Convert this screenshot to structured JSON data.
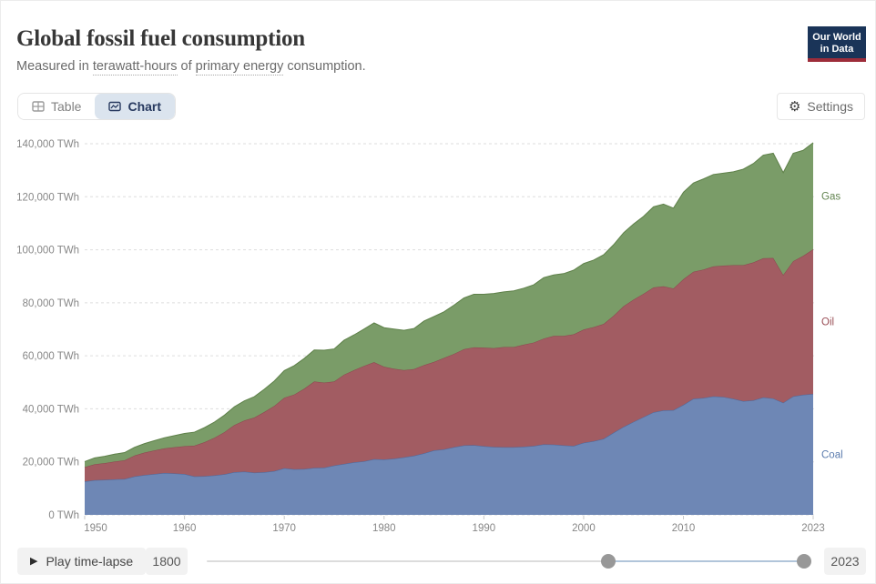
{
  "header": {
    "title": "Global fossil fuel consumption",
    "subtitle_parts": [
      {
        "text": "Measured in "
      },
      {
        "text": "terawatt-hours",
        "term": true
      },
      {
        "text": " of "
      },
      {
        "text": "primary energy",
        "term": true
      },
      {
        "text": " consumption."
      }
    ],
    "logo": {
      "line1": "Our World",
      "line2": "in Data",
      "bg_color": "#1a3458",
      "accent_color": "#9d2c3a"
    }
  },
  "tabs": {
    "table_label": "Table",
    "chart_label": "Chart",
    "active": "Chart"
  },
  "settings": {
    "label": "Settings"
  },
  "icons": {
    "gear_glyph": "⚙",
    "play_glyph": "▶"
  },
  "chart_data": {
    "type": "area",
    "stacked": true,
    "title": "Global fossil fuel consumption",
    "xlabel": "",
    "ylabel": "",
    "unit": "TWh",
    "tick_suffix": " TWh",
    "grid": true,
    "legend_position": "right-edge-labels",
    "ylim": [
      0,
      140000
    ],
    "yticks": [
      0,
      20000,
      40000,
      60000,
      80000,
      100000,
      120000,
      140000
    ],
    "xticks": [
      1950,
      1960,
      1970,
      1980,
      1990,
      2000,
      2010,
      2023
    ],
    "x": [
      1950,
      1951,
      1952,
      1953,
      1954,
      1955,
      1956,
      1957,
      1958,
      1959,
      1960,
      1961,
      1962,
      1963,
      1964,
      1965,
      1966,
      1967,
      1968,
      1969,
      1970,
      1971,
      1972,
      1973,
      1974,
      1975,
      1976,
      1977,
      1978,
      1979,
      1980,
      1981,
      1982,
      1983,
      1984,
      1985,
      1986,
      1987,
      1988,
      1989,
      1990,
      1991,
      1992,
      1993,
      1994,
      1995,
      1996,
      1997,
      1998,
      1999,
      2000,
      2001,
      2002,
      2003,
      2004,
      2005,
      2006,
      2007,
      2008,
      2009,
      2010,
      2011,
      2012,
      2013,
      2014,
      2015,
      2016,
      2017,
      2018,
      2019,
      2020,
      2021,
      2022,
      2023
    ],
    "series": [
      {
        "name": "Coal",
        "fill_color": "#6e87b5",
        "line_color": "#4a699e",
        "label_color": "#5b7cae",
        "values": [
          12600,
          13100,
          13200,
          13400,
          13500,
          14500,
          15000,
          15400,
          15800,
          15600,
          15400,
          14500,
          14600,
          14900,
          15300,
          16100,
          16300,
          15900,
          16100,
          16500,
          17600,
          17200,
          17300,
          17700,
          17800,
          18600,
          19200,
          19800,
          20200,
          21000,
          20900,
          21200,
          21700,
          22300,
          23200,
          24300,
          24700,
          25500,
          26200,
          26300,
          25900,
          25600,
          25500,
          25500,
          25700,
          26000,
          26600,
          26500,
          26200,
          26000,
          27200,
          27800,
          28700,
          31000,
          33200,
          35100,
          36900,
          38700,
          39400,
          39500,
          41500,
          43800,
          44100,
          44700,
          44500,
          43800,
          42900,
          43200,
          44300,
          43900,
          42300,
          44700,
          45300,
          45600
        ]
      },
      {
        "name": "Oil",
        "fill_color": "#a25c62",
        "line_color": "#8c454d",
        "label_color": "#9a4e56",
        "values": [
          5400,
          6000,
          6300,
          6700,
          7100,
          7900,
          8500,
          8900,
          9300,
          9900,
          10500,
          11600,
          12800,
          14200,
          15900,
          17800,
          19300,
          20800,
          22700,
          24600,
          26600,
          28200,
          30300,
          32600,
          32100,
          31700,
          33700,
          34800,
          36000,
          36600,
          35000,
          33900,
          32900,
          32700,
          33300,
          33400,
          34500,
          35200,
          36300,
          36900,
          37200,
          37300,
          37800,
          37800,
          38500,
          39000,
          39900,
          41000,
          41300,
          42100,
          42700,
          43000,
          43300,
          44100,
          45500,
          46100,
          46500,
          47100,
          46800,
          45900,
          47400,
          47900,
          48400,
          49000,
          49500,
          50400,
          51300,
          52000,
          52500,
          53000,
          48200,
          51000,
          52400,
          54600
        ]
      },
      {
        "name": "Gas",
        "fill_color": "#7a9c68",
        "line_color": "#5e8049",
        "label_color": "#638551",
        "values": [
          2100,
          2400,
          2600,
          2800,
          2900,
          3100,
          3400,
          3700,
          4000,
          4400,
          4800,
          5100,
          5500,
          5900,
          6400,
          6900,
          7400,
          7900,
          8600,
          9400,
          10200,
          10900,
          11400,
          11900,
          12200,
          12300,
          13000,
          13300,
          13900,
          14800,
          14700,
          15000,
          15000,
          15300,
          16600,
          17100,
          17400,
          18400,
          19300,
          20000,
          20100,
          20600,
          20800,
          21200,
          21300,
          21800,
          23000,
          23000,
          23500,
          24200,
          24900,
          25300,
          26100,
          26800,
          27700,
          28500,
          29200,
          30400,
          31000,
          30300,
          32800,
          33500,
          34200,
          34700,
          34900,
          35200,
          36200,
          37300,
          38900,
          39500,
          38600,
          40700,
          39800,
          40200
        ]
      }
    ]
  },
  "timeline": {
    "play_label": "Play time-lapse",
    "start_year": "1800",
    "end_year": "2023",
    "handle_start_fraction": 0.6726,
    "handle_end_fraction": 1.0
  }
}
